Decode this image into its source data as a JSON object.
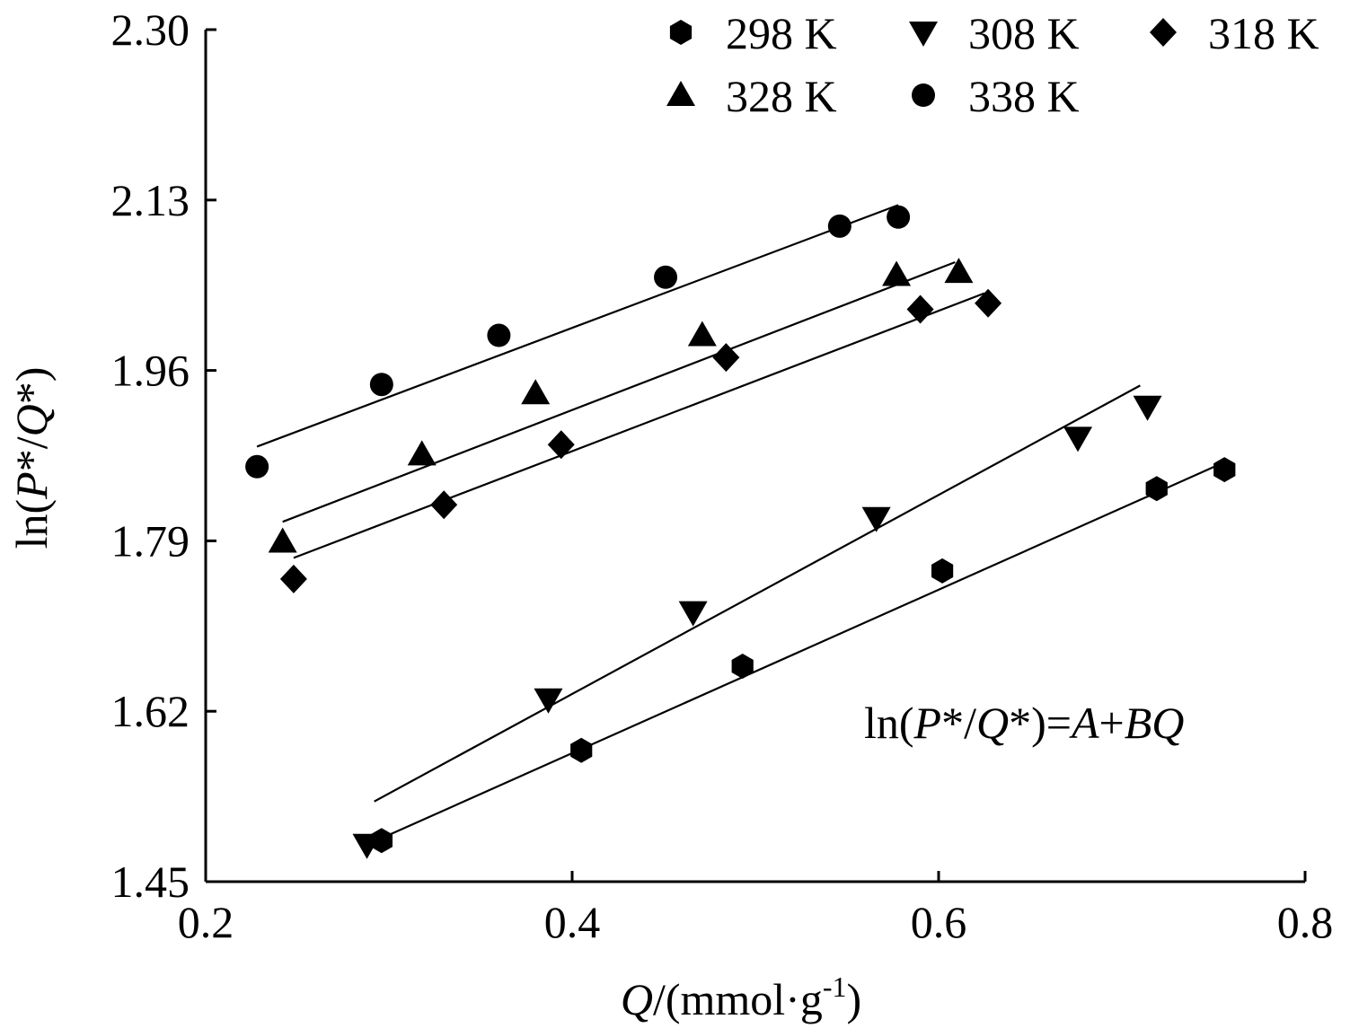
{
  "chart_data": {
    "type": "scatter",
    "title": "",
    "xlabel": {
      "var": "Q",
      "pre": "/(mmol·g",
      "sup": "-1",
      "post": ")"
    },
    "ylabel": {
      "pre": "ln(",
      "v1": "P",
      "mid": "*/",
      "v2": "Q",
      "post": "*)"
    },
    "xlim": [
      0.2,
      0.8
    ],
    "ylim": [
      1.45,
      2.3
    ],
    "xticks": [
      {
        "value": 0.2,
        "label": "0.2"
      },
      {
        "value": 0.4,
        "label": "0.4"
      },
      {
        "value": 0.6,
        "label": "0.6"
      },
      {
        "value": 0.8,
        "label": "0.8"
      }
    ],
    "yticks": [
      {
        "value": 1.45,
        "label": "1.45"
      },
      {
        "value": 1.62,
        "label": "1.62"
      },
      {
        "value": 1.79,
        "label": "1.79"
      },
      {
        "value": 1.96,
        "label": "1.96"
      },
      {
        "value": 2.13,
        "label": "2.13"
      },
      {
        "value": 2.3,
        "label": "2.30"
      }
    ],
    "grid": false,
    "legend_position": "top-right",
    "annotation": {
      "pre": "ln(",
      "v1": "P",
      "mid1": "*/",
      "v2": "Q",
      "mid2": "*)=",
      "v3": "A",
      "mid3": "+",
      "v4": "BQ"
    },
    "series": [
      {
        "name": "298 K",
        "marker": "hexagon",
        "points": [
          [
            0.296,
            1.491
          ],
          [
            0.405,
            1.581
          ],
          [
            0.493,
            1.665
          ],
          [
            0.602,
            1.76
          ],
          [
            0.719,
            1.842
          ],
          [
            0.756,
            1.861
          ]
        ],
        "fit": [
          [
            0.298,
            1.495
          ],
          [
            0.753,
            1.866
          ]
        ]
      },
      {
        "name": "308 K",
        "marker": "triangle-down",
        "points": [
          [
            0.288,
            1.487
          ],
          [
            0.387,
            1.632
          ],
          [
            0.466,
            1.719
          ],
          [
            0.566,
            1.813
          ],
          [
            0.676,
            1.893
          ],
          [
            0.714,
            1.924
          ]
        ],
        "fit": [
          [
            0.292,
            1.53
          ],
          [
            0.71,
            1.945
          ]
        ]
      },
      {
        "name": "318 K",
        "marker": "diamond",
        "points": [
          [
            0.248,
            1.752
          ],
          [
            0.33,
            1.826
          ],
          [
            0.394,
            1.886
          ],
          [
            0.484,
            1.973
          ],
          [
            0.59,
            2.021
          ],
          [
            0.627,
            2.027
          ]
        ],
        "fit": [
          [
            0.248,
            1.773
          ],
          [
            0.625,
            2.037
          ]
        ]
      },
      {
        "name": "328 K",
        "marker": "triangle-up",
        "points": [
          [
            0.242,
            1.789
          ],
          [
            0.318,
            1.876
          ],
          [
            0.38,
            1.937
          ],
          [
            0.471,
            1.995
          ],
          [
            0.577,
            2.055
          ],
          [
            0.611,
            2.058
          ]
        ],
        "fit": [
          [
            0.242,
            1.809
          ],
          [
            0.609,
            2.068
          ]
        ]
      },
      {
        "name": "338 K",
        "marker": "circle",
        "points": [
          [
            0.228,
            1.864
          ],
          [
            0.296,
            1.946
          ],
          [
            0.36,
            1.995
          ],
          [
            0.451,
            2.053
          ],
          [
            0.546,
            2.104
          ],
          [
            0.578,
            2.113
          ]
        ],
        "fit": [
          [
            0.228,
            1.884
          ],
          [
            0.578,
            2.125
          ]
        ]
      }
    ]
  }
}
